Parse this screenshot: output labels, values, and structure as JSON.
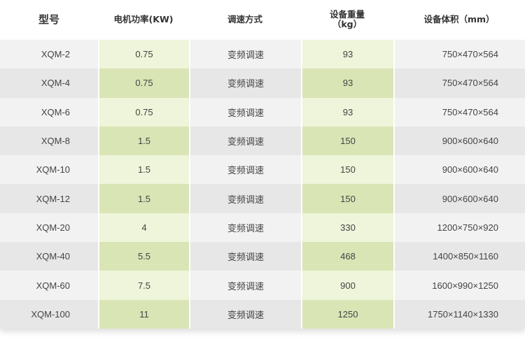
{
  "headers": [
    "型号",
    "电机功率(KW)",
    "调速方式",
    "设备重量\n（kg）",
    "设备体积（mm）"
  ],
  "header_weight": [
    "设备重量",
    "（kg）"
  ],
  "rows": [
    [
      "XQM-2",
      "0.75",
      "变频调速",
      "93",
      "750×470×564"
    ],
    [
      "XQM-4",
      "0.75",
      "变频调速",
      "93",
      "750×470×564"
    ],
    [
      "XQM-6",
      "0.75",
      "变频调速",
      "93",
      "750×470×564"
    ],
    [
      "XQM-8",
      "1.5",
      "变频调速",
      "150",
      "900×600×640"
    ],
    [
      "XQM-10",
      "1.5",
      "变频调速",
      "150",
      "900×600×640"
    ],
    [
      "XQM-12",
      "1.5",
      "变频调速",
      "150",
      "900×600×640"
    ],
    [
      "XQM-20",
      "4",
      "变频调速",
      "330",
      "1200×750×920"
    ],
    [
      "XQM-40",
      "5.5",
      "变频调速",
      "468",
      "1400×850×1160"
    ],
    [
      "XQM-60",
      "7.5",
      "变频调速",
      "900",
      "1600×990×1250"
    ],
    [
      "XQM-100",
      "11",
      "变频调速",
      "1250",
      "1750×1140×1330"
    ]
  ],
  "colors": {
    "gray_light": "#f2f2f2",
    "gray_dark": "#e7e7e7",
    "green_light": "#eef5da",
    "green_dark": "#d9e5b5"
  }
}
